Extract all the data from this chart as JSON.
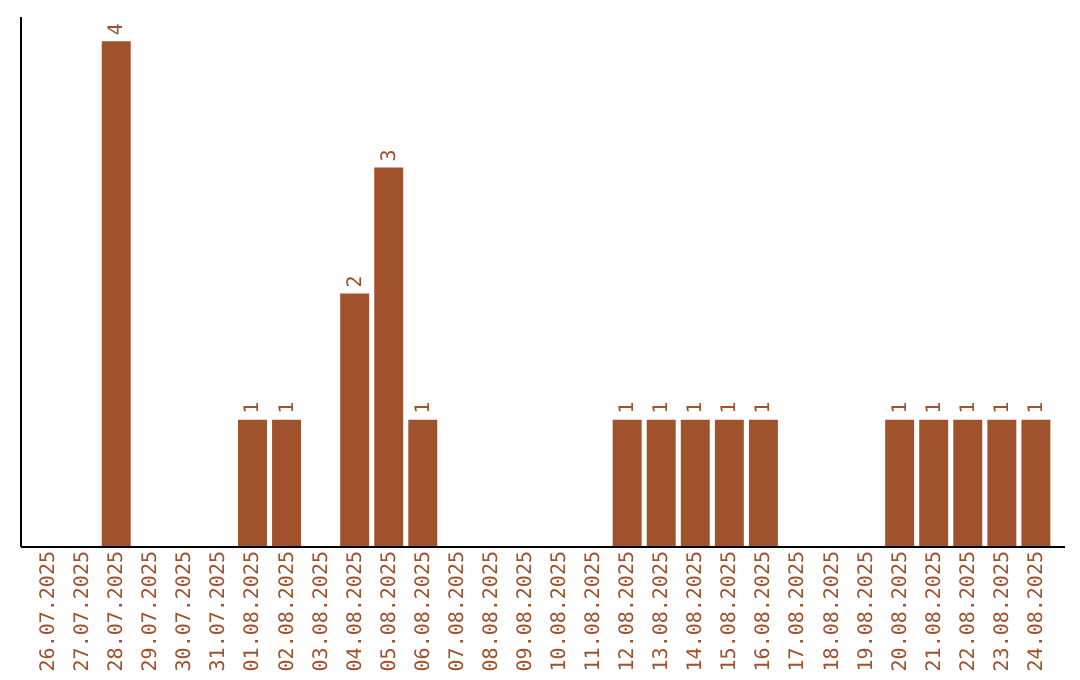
{
  "chart_data": {
    "type": "bar",
    "categories": [
      "26.07.2025",
      "27.07.2025",
      "28.07.2025",
      "29.07.2025",
      "30.07.2025",
      "31.07.2025",
      "01.08.2025",
      "02.08.2025",
      "03.08.2025",
      "04.08.2025",
      "05.08.2025",
      "06.08.2025",
      "07.08.2025",
      "08.08.2025",
      "09.08.2025",
      "10.08.2025",
      "11.08.2025",
      "12.08.2025",
      "13.08.2025",
      "14.08.2025",
      "15.08.2025",
      "16.08.2025",
      "17.08.2025",
      "18.08.2025",
      "19.08.2025",
      "20.08.2025",
      "21.08.2025",
      "22.08.2025",
      "23.08.2025",
      "24.08.2025"
    ],
    "values": [
      0,
      0,
      4,
      0,
      0,
      0,
      1,
      1,
      0,
      2,
      3,
      1,
      0,
      0,
      0,
      0,
      0,
      1,
      1,
      1,
      1,
      1,
      0,
      0,
      0,
      1,
      1,
      1,
      1,
      1
    ],
    "value_labels": [
      null,
      null,
      "4",
      null,
      null,
      null,
      "1",
      "1",
      null,
      "2",
      "3",
      "1",
      null,
      null,
      null,
      null,
      null,
      "1",
      "1",
      "1",
      "1",
      "1",
      null,
      null,
      null,
      "1",
      "1",
      "1",
      "1",
      "1"
    ],
    "color": "#a0522d",
    "tick_labels": "x",
    "grid": false
  }
}
